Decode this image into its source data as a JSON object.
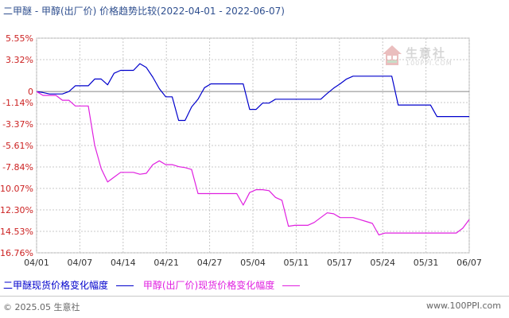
{
  "title": "二甲醚 - 甲醇(出厂价) 价格趋势比较(2022-04-01 - 2022-06-07)",
  "footer": {
    "copyright": "© 2025.05 生意社",
    "site": "www.100PPI.com"
  },
  "watermark": {
    "name": "生意社",
    "url": "100PPI.COM"
  },
  "colors": {
    "series1": "#0000cc",
    "series2": "#e020e0",
    "grid": "#c8c8c8",
    "zero": "#888888",
    "axis_text": "#333333"
  },
  "chart_data": {
    "type": "line",
    "title": "二甲醚 - 甲醇(出厂价) 价格趋势比较(2022-04-01 - 2022-06-07)",
    "xlabel": "",
    "ylabel": "",
    "x_ticks": [
      "04/01",
      "04/07",
      "04/14",
      "04/21",
      "04/27",
      "05/04",
      "05/11",
      "05/17",
      "05/24",
      "05/31",
      "06/07"
    ],
    "y_ticks": [
      "5.55%",
      "3.32%",
      "0",
      "-1.14%",
      "-3.37%",
      "-5.61%",
      "-7.84%",
      "-10.07%",
      "-12.30%",
      "-14.53%",
      "-16.76%"
    ],
    "y_tick_values": [
      5.55,
      3.32,
      0,
      -1.14,
      -3.37,
      -5.61,
      -7.84,
      -10.07,
      -12.3,
      -14.53,
      -16.76
    ],
    "ylim": [
      -16.76,
      5.55
    ],
    "xlim": [
      "2022-04-01",
      "2022-06-07"
    ],
    "grid": true,
    "legend_position": "bottom",
    "series": [
      {
        "name": "二甲醚现货价格变化幅度",
        "color": "#0000cc",
        "points": [
          [
            "2022-04-01",
            0
          ],
          [
            "2022-04-02",
            -0.1
          ],
          [
            "2022-04-03",
            -0.25
          ],
          [
            "2022-04-04",
            -0.25
          ],
          [
            "2022-04-05",
            -0.25
          ],
          [
            "2022-04-06",
            0
          ],
          [
            "2022-04-07",
            0.6
          ],
          [
            "2022-04-08",
            0.6
          ],
          [
            "2022-04-09",
            0.6
          ],
          [
            "2022-04-10",
            1.3
          ],
          [
            "2022-04-11",
            1.3
          ],
          [
            "2022-04-12",
            0.7
          ],
          [
            "2022-04-13",
            1.9
          ],
          [
            "2022-04-14",
            2.2
          ],
          [
            "2022-04-15",
            2.2
          ],
          [
            "2022-04-16",
            2.2
          ],
          [
            "2022-04-17",
            2.9
          ],
          [
            "2022-04-18",
            2.5
          ],
          [
            "2022-04-19",
            1.5
          ],
          [
            "2022-04-20",
            0.3
          ],
          [
            "2022-04-21",
            -0.55
          ],
          [
            "2022-04-22",
            -0.55
          ],
          [
            "2022-04-23",
            -3.0
          ],
          [
            "2022-04-24",
            -3.0
          ],
          [
            "2022-04-25",
            -1.6
          ],
          [
            "2022-04-26",
            -0.8
          ],
          [
            "2022-04-27",
            0.4
          ],
          [
            "2022-04-28",
            0.8
          ],
          [
            "2022-04-29",
            0.8
          ],
          [
            "2022-04-30",
            0.8
          ],
          [
            "2022-05-01",
            0.8
          ],
          [
            "2022-05-02",
            0.8
          ],
          [
            "2022-05-03",
            0.8
          ],
          [
            "2022-05-04",
            -1.85
          ],
          [
            "2022-05-05",
            -1.85
          ],
          [
            "2022-05-06",
            -1.2
          ],
          [
            "2022-05-07",
            -1.2
          ],
          [
            "2022-05-08",
            -0.8
          ],
          [
            "2022-05-09",
            -0.8
          ],
          [
            "2022-05-10",
            -0.8
          ],
          [
            "2022-05-11",
            -0.8
          ],
          [
            "2022-05-12",
            -0.8
          ],
          [
            "2022-05-13",
            -0.8
          ],
          [
            "2022-05-14",
            -0.8
          ],
          [
            "2022-05-15",
            -0.8
          ],
          [
            "2022-05-16",
            -0.2
          ],
          [
            "2022-05-17",
            0.35
          ],
          [
            "2022-05-18",
            0.8
          ],
          [
            "2022-05-19",
            1.3
          ],
          [
            "2022-05-20",
            1.6
          ],
          [
            "2022-05-21",
            1.6
          ],
          [
            "2022-05-22",
            1.6
          ],
          [
            "2022-05-23",
            1.6
          ],
          [
            "2022-05-24",
            1.6
          ],
          [
            "2022-05-25",
            1.6
          ],
          [
            "2022-05-26",
            1.6
          ],
          [
            "2022-05-27",
            -1.4
          ],
          [
            "2022-05-28",
            -1.4
          ],
          [
            "2022-05-29",
            -1.4
          ],
          [
            "2022-05-30",
            -1.4
          ],
          [
            "2022-05-31",
            -1.4
          ],
          [
            "2022-06-01",
            -1.4
          ],
          [
            "2022-06-02",
            -2.6
          ],
          [
            "2022-06-03",
            -2.6
          ],
          [
            "2022-06-04",
            -2.6
          ],
          [
            "2022-06-05",
            -2.6
          ],
          [
            "2022-06-06",
            -2.6
          ],
          [
            "2022-06-07",
            -2.6
          ]
        ]
      },
      {
        "name": "甲醇(出厂价)现货价格变化幅度",
        "color": "#e020e0",
        "points": [
          [
            "2022-04-01",
            0
          ],
          [
            "2022-04-02",
            -0.4
          ],
          [
            "2022-04-03",
            -0.4
          ],
          [
            "2022-04-04",
            -0.4
          ],
          [
            "2022-04-05",
            -0.9
          ],
          [
            "2022-04-06",
            -0.9
          ],
          [
            "2022-04-07",
            -1.5
          ],
          [
            "2022-04-08",
            -1.5
          ],
          [
            "2022-04-09",
            -1.5
          ],
          [
            "2022-04-10",
            -5.6
          ],
          [
            "2022-04-11",
            -8.0
          ],
          [
            "2022-04-12",
            -9.4
          ],
          [
            "2022-04-13",
            -8.9
          ],
          [
            "2022-04-14",
            -8.4
          ],
          [
            "2022-04-15",
            -8.4
          ],
          [
            "2022-04-16",
            -8.4
          ],
          [
            "2022-04-17",
            -8.6
          ],
          [
            "2022-04-18",
            -8.5
          ],
          [
            "2022-04-19",
            -7.6
          ],
          [
            "2022-04-20",
            -7.2
          ],
          [
            "2022-04-21",
            -7.6
          ],
          [
            "2022-04-22",
            -7.6
          ],
          [
            "2022-04-23",
            -7.8
          ],
          [
            "2022-04-24",
            -7.9
          ],
          [
            "2022-04-25",
            -8.1
          ],
          [
            "2022-04-26",
            -10.6
          ],
          [
            "2022-04-27",
            -10.6
          ],
          [
            "2022-04-28",
            -10.6
          ],
          [
            "2022-04-29",
            -10.6
          ],
          [
            "2022-04-30",
            -10.6
          ],
          [
            "2022-05-01",
            -10.6
          ],
          [
            "2022-05-02",
            -10.6
          ],
          [
            "2022-05-03",
            -11.8
          ],
          [
            "2022-05-04",
            -10.5
          ],
          [
            "2022-05-05",
            -10.2
          ],
          [
            "2022-05-06",
            -10.2
          ],
          [
            "2022-05-07",
            -10.3
          ],
          [
            "2022-05-08",
            -11.0
          ],
          [
            "2022-05-09",
            -11.3
          ],
          [
            "2022-05-10",
            -14.0
          ],
          [
            "2022-05-11",
            -13.9
          ],
          [
            "2022-05-12",
            -13.9
          ],
          [
            "2022-05-13",
            -13.9
          ],
          [
            "2022-05-14",
            -13.6
          ],
          [
            "2022-05-15",
            -13.1
          ],
          [
            "2022-05-16",
            -12.6
          ],
          [
            "2022-05-17",
            -12.7
          ],
          [
            "2022-05-18",
            -13.1
          ],
          [
            "2022-05-19",
            -13.1
          ],
          [
            "2022-05-20",
            -13.1
          ],
          [
            "2022-05-21",
            -13.3
          ],
          [
            "2022-05-22",
            -13.5
          ],
          [
            "2022-05-23",
            -13.7
          ],
          [
            "2022-05-24",
            -14.9
          ],
          [
            "2022-05-25",
            -14.7
          ],
          [
            "2022-05-26",
            -14.7
          ],
          [
            "2022-05-27",
            -14.7
          ],
          [
            "2022-05-28",
            -14.7
          ],
          [
            "2022-05-29",
            -14.7
          ],
          [
            "2022-05-30",
            -14.7
          ],
          [
            "2022-05-31",
            -14.7
          ],
          [
            "2022-06-01",
            -14.7
          ],
          [
            "2022-06-02",
            -14.7
          ],
          [
            "2022-06-03",
            -14.7
          ],
          [
            "2022-06-04",
            -14.7
          ],
          [
            "2022-06-05",
            -14.7
          ],
          [
            "2022-06-06",
            -14.2
          ],
          [
            "2022-06-07",
            -13.3
          ]
        ]
      }
    ]
  }
}
